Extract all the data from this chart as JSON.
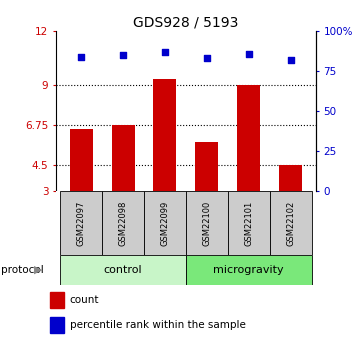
{
  "title": "GDS928 / 5193",
  "samples": [
    "GSM22097",
    "GSM22098",
    "GSM22099",
    "GSM22100",
    "GSM22101",
    "GSM22102"
  ],
  "bar_values": [
    6.5,
    6.75,
    9.3,
    5.8,
    9.0,
    4.5
  ],
  "scatter_values": [
    84,
    85,
    87,
    83,
    86,
    82
  ],
  "ylim_left": [
    3,
    12
  ],
  "ylim_right": [
    0,
    100
  ],
  "yticks_left": [
    3,
    4.5,
    6.75,
    9,
    12
  ],
  "ytick_labels_left": [
    "3",
    "4.5",
    "6.75",
    "9",
    "12"
  ],
  "yticks_right": [
    0,
    25,
    50,
    75,
    100
  ],
  "ytick_labels_right": [
    "0",
    "25",
    "50",
    "75",
    "100%"
  ],
  "hlines": [
    4.5,
    6.75,
    9
  ],
  "bar_color": "#cc0000",
  "scatter_color": "#0000cc",
  "bar_width": 0.55,
  "groups": [
    {
      "label": "control",
      "indices": [
        0,
        1,
        2
      ],
      "color": "#c8f5c8"
    },
    {
      "label": "microgravity",
      "indices": [
        3,
        4,
        5
      ],
      "color": "#7ae87a"
    }
  ],
  "protocol_label": "protocol",
  "legend_items": [
    {
      "color": "#cc0000",
      "label": "count"
    },
    {
      "color": "#0000cc",
      "label": "percentile rank within the sample"
    }
  ],
  "bg_color": "#ffffff",
  "sample_box_color": "#cccccc"
}
